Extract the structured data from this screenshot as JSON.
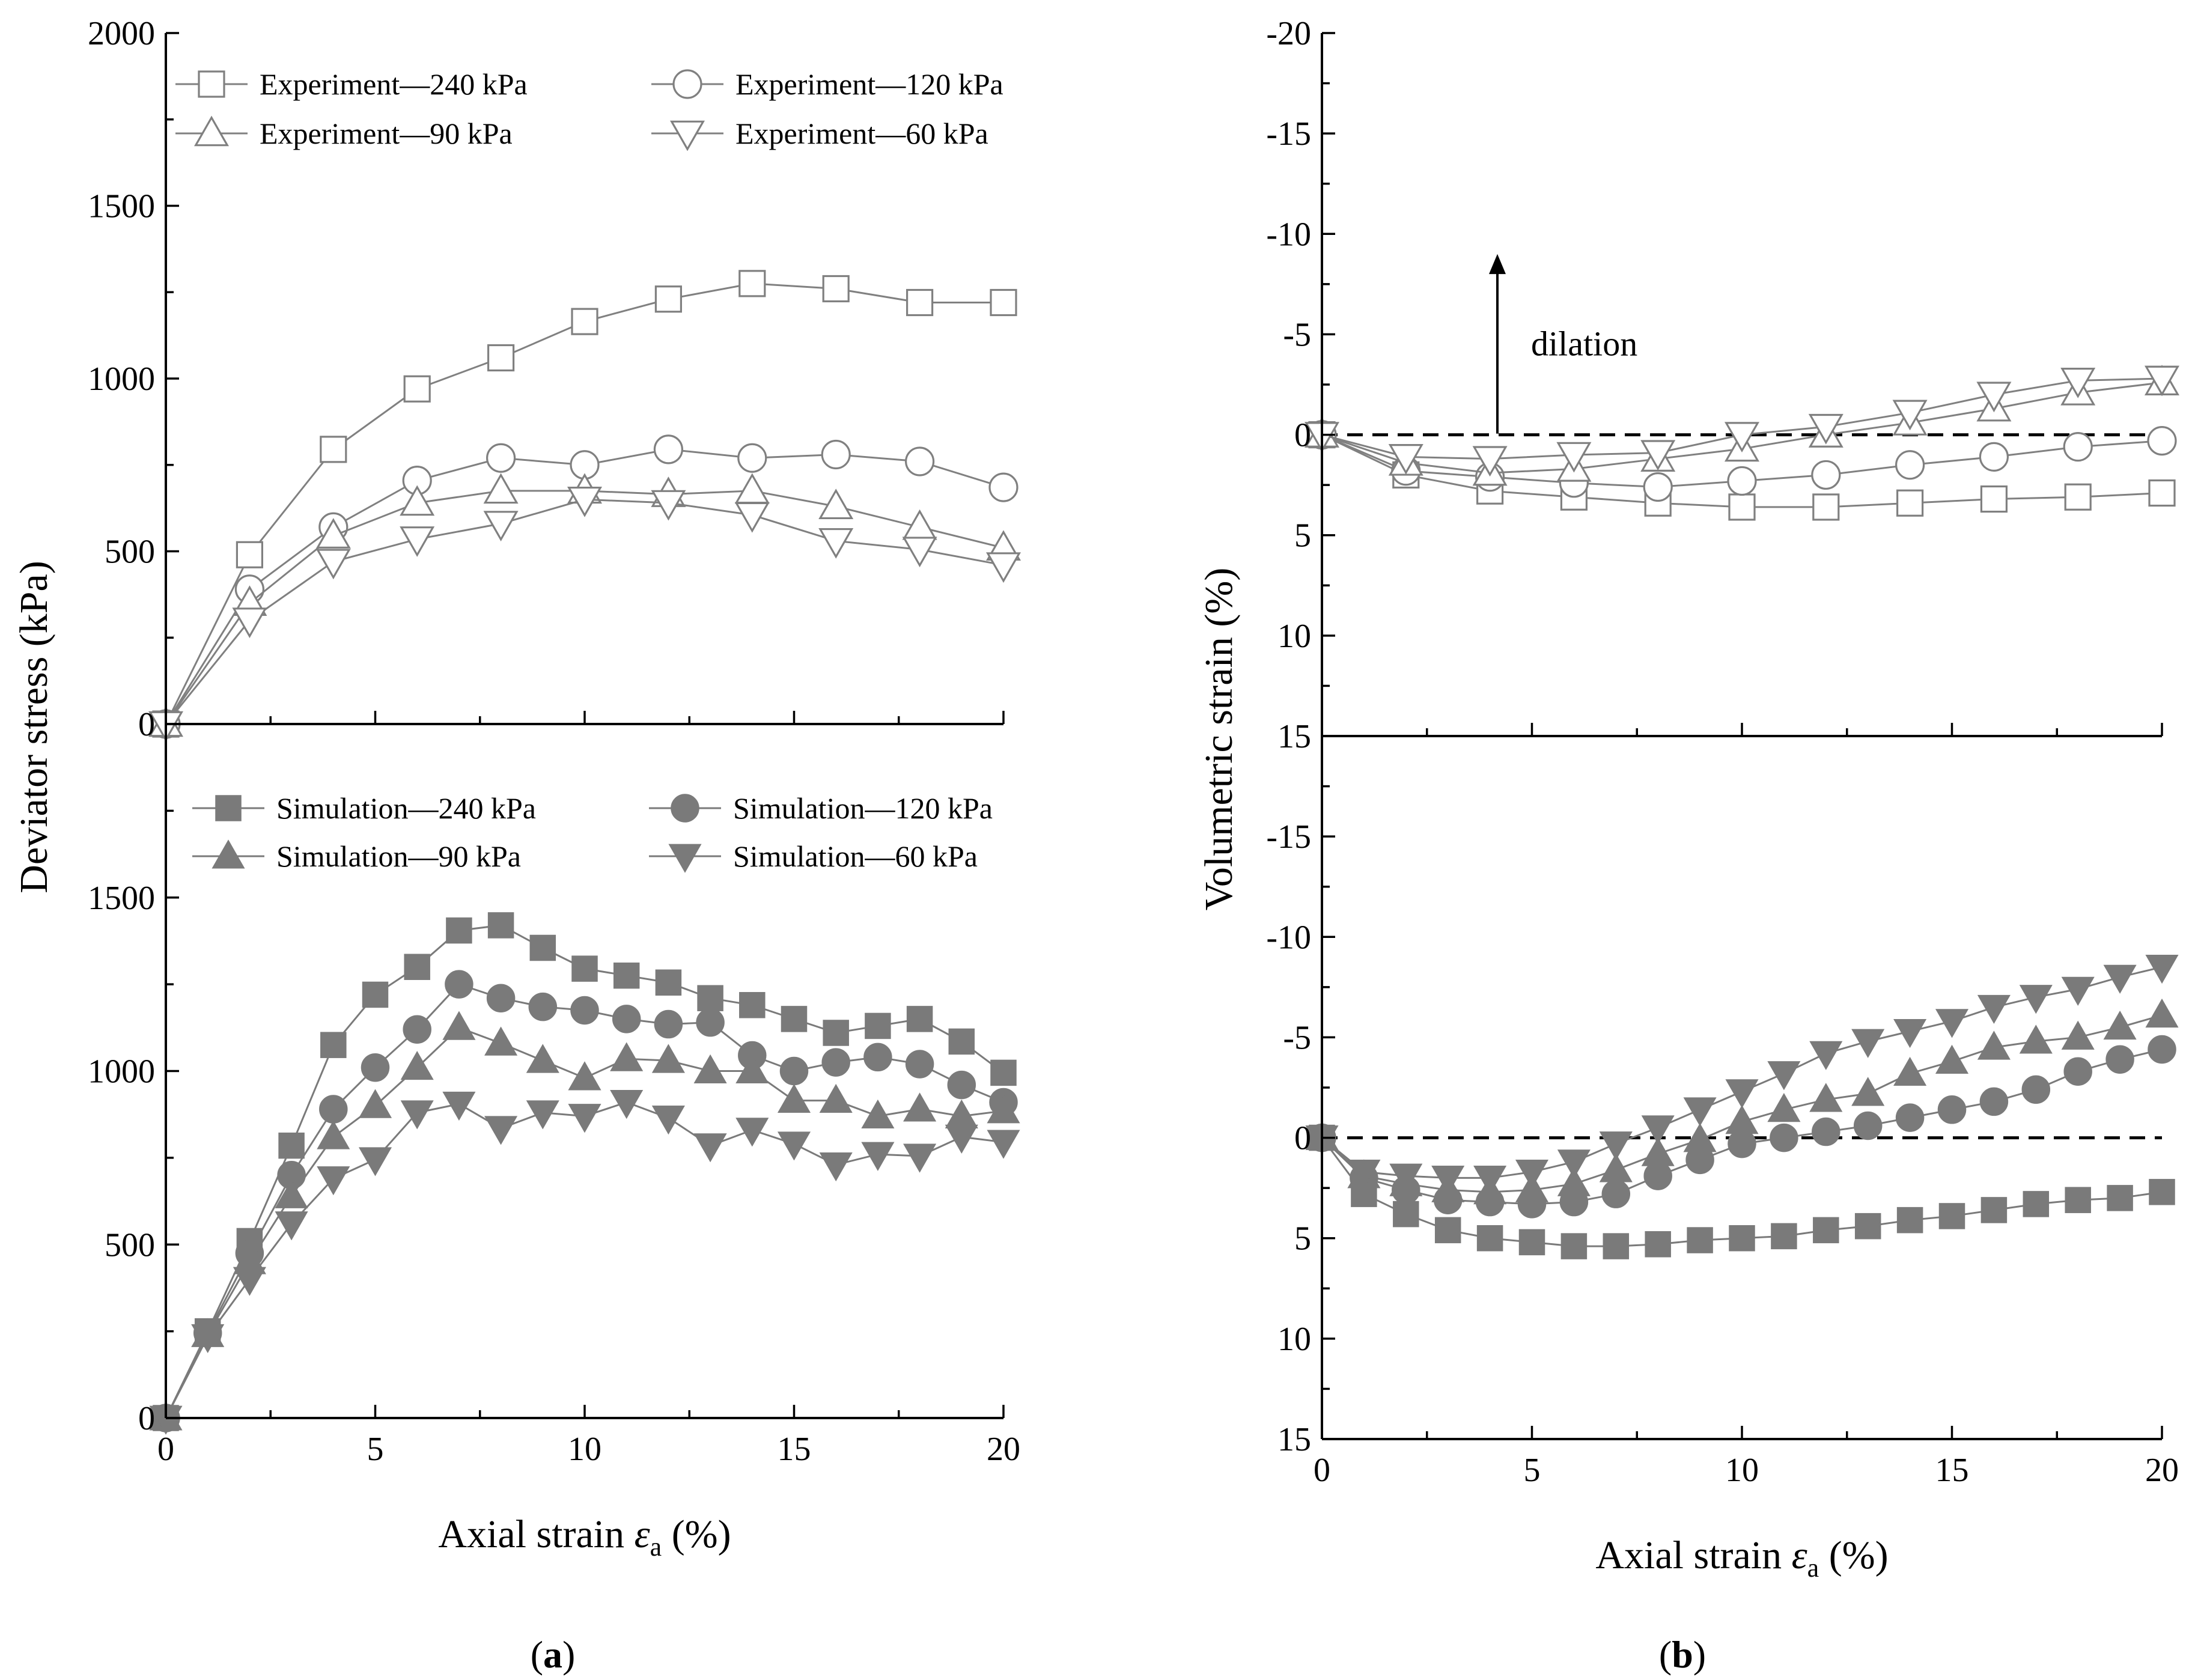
{
  "figure": {
    "panel_a_label": "(a)",
    "panel_b_label": "(b)",
    "panel_a_paren_open": "(",
    "panel_a_letter": "a",
    "panel_a_paren_close": ")",
    "panel_b_paren_open": "(",
    "panel_b_letter": "b",
    "panel_b_paren_close": ")"
  },
  "colors": {
    "experiment": "#808080",
    "simulation": "#7a7a7a",
    "axis": "#000000"
  },
  "chart_data": [
    {
      "id": "a_top",
      "type": "line",
      "panel": "a",
      "xlabel": "Axial strain ε_a (%)",
      "ylabel": "Deviator stress (kPa)",
      "xlim": [
        0,
        20
      ],
      "ylim": [
        0,
        2000
      ],
      "xticks": [
        0,
        5,
        10,
        15,
        20
      ],
      "yticks": [
        0,
        500,
        1000,
        1500,
        2000
      ],
      "xtick_labels": [
        "0",
        "5",
        "10",
        "15",
        "20"
      ],
      "ytick_labels": [
        "0",
        "500",
        "1000",
        "1500",
        "2000"
      ],
      "legend_position": "top",
      "series": [
        {
          "name": "Experiment—240 kPa",
          "marker": "square-open",
          "x": [
            0,
            2,
            4,
            6,
            8,
            10,
            12,
            14,
            16,
            18,
            20
          ],
          "y": [
            0,
            490,
            795,
            970,
            1060,
            1165,
            1230,
            1275,
            1260,
            1220,
            1220
          ]
        },
        {
          "name": "Experiment—120 kPa",
          "marker": "circle-open",
          "x": [
            0,
            2,
            4,
            6,
            8,
            10,
            12,
            14,
            16,
            18,
            20
          ],
          "y": [
            0,
            390,
            570,
            705,
            770,
            750,
            795,
            770,
            780,
            760,
            685
          ]
        },
        {
          "name": "Experiment—90 kPa",
          "marker": "triangle-up-open",
          "x": [
            0,
            2,
            4,
            6,
            8,
            10,
            12,
            14,
            16,
            18,
            20
          ],
          "y": [
            0,
            350,
            545,
            640,
            675,
            675,
            665,
            675,
            630,
            570,
            510
          ]
        },
        {
          "name": "Experiment—60 kPa",
          "marker": "triangle-down-open",
          "x": [
            0,
            2,
            4,
            6,
            8,
            10,
            12,
            14,
            16,
            18,
            20
          ],
          "y": [
            0,
            300,
            470,
            535,
            580,
            650,
            640,
            605,
            530,
            505,
            460
          ]
        }
      ]
    },
    {
      "id": "a_bottom",
      "type": "line",
      "panel": "a",
      "xlabel": "Axial strain ε_a (%)",
      "ylabel": "Deviator stress (kPa)",
      "xlim": [
        0,
        20
      ],
      "ylim": [
        0,
        2000
      ],
      "xticks": [
        0,
        5,
        10,
        15,
        20
      ],
      "yticks": [
        0,
        500,
        1000,
        1500
      ],
      "xtick_labels": [
        "0",
        "5",
        "10",
        "15",
        "20"
      ],
      "ytick_labels": [
        "0",
        "500",
        "1000",
        "1500"
      ],
      "legend_position": "top",
      "series": [
        {
          "name": "Simulation—240 kPa",
          "marker": "square-filled",
          "x": [
            0,
            1,
            2,
            3,
            4,
            5,
            6,
            7,
            8,
            9,
            10,
            11,
            12,
            13,
            14,
            15,
            16,
            17,
            18,
            19,
            20
          ],
          "y": [
            0,
            250,
            510,
            785,
            1075,
            1220,
            1300,
            1405,
            1420,
            1355,
            1295,
            1275,
            1255,
            1210,
            1190,
            1150,
            1110,
            1130,
            1150,
            1085,
            995
          ]
        },
        {
          "name": "Simulation—120 kPa",
          "marker": "circle-filled",
          "x": [
            0,
            1,
            2,
            3,
            4,
            5,
            6,
            7,
            8,
            9,
            10,
            11,
            12,
            13,
            14,
            15,
            16,
            17,
            18,
            19,
            20
          ],
          "y": [
            0,
            245,
            475,
            700,
            890,
            1010,
            1120,
            1250,
            1210,
            1185,
            1175,
            1150,
            1135,
            1140,
            1045,
            1000,
            1025,
            1040,
            1020,
            960,
            910
          ]
        },
        {
          "name": "Simulation—90 kPa",
          "marker": "triangle-up-filled",
          "x": [
            0,
            1,
            2,
            3,
            4,
            5,
            6,
            7,
            8,
            9,
            10,
            11,
            12,
            13,
            14,
            15,
            16,
            17,
            18,
            19,
            20
          ],
          "y": [
            0,
            240,
            450,
            640,
            810,
            900,
            1010,
            1125,
            1080,
            1030,
            980,
            1035,
            1030,
            1000,
            1000,
            915,
            915,
            870,
            890,
            870,
            885
          ]
        },
        {
          "name": "Simulation—60 kPa",
          "marker": "triangle-down-filled",
          "x": [
            0,
            1,
            2,
            3,
            4,
            5,
            6,
            7,
            8,
            9,
            10,
            11,
            12,
            13,
            14,
            15,
            16,
            17,
            18,
            19,
            20
          ],
          "y": [
            0,
            235,
            400,
            560,
            690,
            745,
            880,
            905,
            835,
            880,
            870,
            910,
            865,
            785,
            830,
            790,
            730,
            760,
            755,
            810,
            795
          ]
        }
      ]
    },
    {
      "id": "b_top",
      "type": "line",
      "panel": "b",
      "xlabel": "Axial strain ε_a (%)",
      "ylabel": "Volumetric strain (%)",
      "xlim": [
        0,
        20
      ],
      "ylim": [
        15,
        -20
      ],
      "y_inverted": true,
      "xticks": [
        0,
        5,
        10,
        15,
        20
      ],
      "yticks": [
        -20,
        -15,
        -10,
        -5,
        0,
        5,
        10,
        15
      ],
      "xtick_labels": [
        "0",
        "5",
        "10",
        "15",
        "20"
      ],
      "ytick_labels": [
        "-20",
        "-15",
        "-10",
        "-5",
        "0",
        "5",
        "10",
        "15"
      ],
      "annotation": "dilation",
      "reference_line": 0,
      "series": [
        {
          "name": "Experiment—240 kPa",
          "marker": "square-open",
          "x": [
            0,
            2,
            4,
            6,
            8,
            10,
            12,
            14,
            16,
            18,
            20
          ],
          "y": [
            0,
            2.0,
            2.8,
            3.1,
            3.4,
            3.6,
            3.6,
            3.4,
            3.2,
            3.1,
            2.9
          ]
        },
        {
          "name": "Experiment—120 kPa",
          "marker": "circle-open",
          "x": [
            0,
            2,
            4,
            6,
            8,
            10,
            12,
            14,
            16,
            18,
            20
          ],
          "y": [
            0,
            1.8,
            2.1,
            2.4,
            2.6,
            2.3,
            2.0,
            1.5,
            1.1,
            0.6,
            0.3
          ]
        },
        {
          "name": "Experiment—90 kPa",
          "marker": "triangle-up-open",
          "x": [
            0,
            2,
            4,
            6,
            8,
            10,
            12,
            14,
            16,
            18,
            20
          ],
          "y": [
            0,
            1.4,
            1.9,
            1.7,
            1.2,
            0.7,
            0.0,
            -0.6,
            -1.3,
            -2.1,
            -2.6
          ]
        },
        {
          "name": "Experiment—60 kPa",
          "marker": "triangle-down-open",
          "x": [
            0,
            2,
            4,
            6,
            8,
            10,
            12,
            14,
            16,
            18,
            20
          ],
          "y": [
            0,
            1.1,
            1.2,
            1.0,
            0.9,
            0.0,
            -0.4,
            -1.1,
            -2.0,
            -2.7,
            -2.8
          ]
        }
      ]
    },
    {
      "id": "b_bottom",
      "type": "line",
      "panel": "b",
      "xlabel": "Axial strain ε_a (%)",
      "ylabel": "Volumetric strain (%)",
      "xlim": [
        0,
        20
      ],
      "ylim": [
        15,
        -20
      ],
      "y_inverted": true,
      "xticks": [
        0,
        5,
        10,
        15,
        20
      ],
      "yticks": [
        -15,
        -10,
        -5,
        0,
        5,
        10,
        15
      ],
      "xtick_labels": [
        "0",
        "5",
        "10",
        "15",
        "20"
      ],
      "ytick_labels": [
        "-15",
        "-10",
        "-5",
        "0",
        "5",
        "10",
        "15"
      ],
      "reference_line": 0,
      "series": [
        {
          "name": "Simulation—240 kPa",
          "marker": "square-filled",
          "x": [
            0,
            1,
            2,
            3,
            4,
            5,
            6,
            7,
            8,
            9,
            10,
            11,
            12,
            13,
            14,
            15,
            16,
            17,
            18,
            19,
            20
          ],
          "y": [
            0,
            2.8,
            3.8,
            4.6,
            5.0,
            5.2,
            5.4,
            5.4,
            5.3,
            5.1,
            5.0,
            4.9,
            4.6,
            4.4,
            4.1,
            3.9,
            3.6,
            3.3,
            3.1,
            3.0,
            2.7
          ]
        },
        {
          "name": "Simulation—120 kPa",
          "marker": "circle-filled",
          "x": [
            0,
            1,
            2,
            3,
            4,
            5,
            6,
            7,
            8,
            9,
            10,
            11,
            12,
            13,
            14,
            15,
            16,
            17,
            18,
            19,
            20
          ],
          "y": [
            0,
            2.0,
            2.6,
            3.1,
            3.2,
            3.3,
            3.2,
            2.8,
            1.9,
            1.1,
            0.3,
            0.0,
            -0.3,
            -0.6,
            -1.0,
            -1.4,
            -1.8,
            -2.4,
            -3.3,
            -3.9,
            -4.4
          ]
        },
        {
          "name": "Simulation—90 kPa",
          "marker": "triangle-up-filled",
          "x": [
            0,
            1,
            2,
            3,
            4,
            5,
            6,
            7,
            8,
            9,
            10,
            11,
            12,
            13,
            14,
            15,
            16,
            17,
            18,
            19,
            20
          ],
          "y": [
            0,
            1.9,
            2.3,
            2.6,
            2.7,
            2.6,
            2.3,
            1.6,
            0.8,
            0.1,
            -0.8,
            -1.4,
            -1.9,
            -2.2,
            -3.2,
            -3.8,
            -4.5,
            -4.8,
            -5.0,
            -5.5,
            -6.1
          ]
        },
        {
          "name": "Simulation—60 kPa",
          "marker": "triangle-down-filled",
          "x": [
            0,
            1,
            2,
            3,
            4,
            5,
            6,
            7,
            8,
            9,
            10,
            11,
            12,
            13,
            14,
            15,
            16,
            17,
            18,
            19,
            20
          ],
          "y": [
            0,
            1.7,
            1.9,
            2.0,
            2.0,
            1.7,
            1.2,
            0.3,
            -0.5,
            -1.4,
            -2.3,
            -3.2,
            -4.2,
            -4.8,
            -5.3,
            -5.8,
            -6.5,
            -7.0,
            -7.4,
            -8.0,
            -8.5
          ]
        }
      ]
    }
  ]
}
